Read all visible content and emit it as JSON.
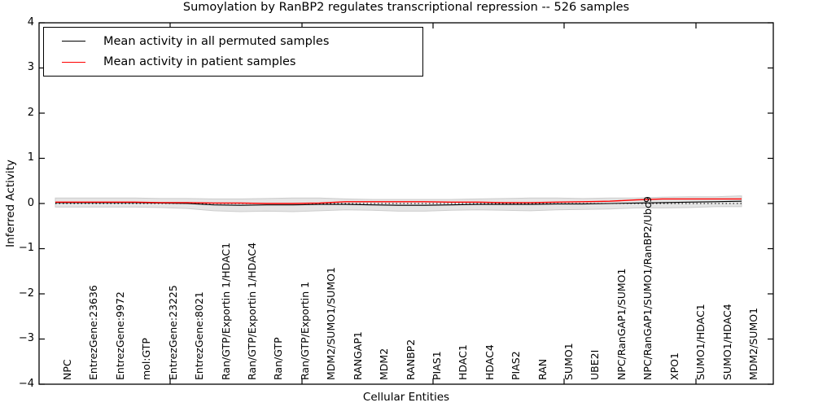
{
  "title": "Sumoylation by RanBP2 regulates transcriptional repression -- 526 samples",
  "legend": {
    "items": [
      {
        "label": "Mean activity in all permuted samples",
        "color": "#000000"
      },
      {
        "label": "Mean activity in patient samples",
        "color": "#ff0000"
      }
    ],
    "position": "upper left"
  },
  "chart_data": {
    "type": "line",
    "title": "Sumoylation by RanBP2 regulates transcriptional repression -- 526 samples",
    "xlabel": "Cellular Entities",
    "ylabel": "Inferred Activity",
    "ylim": [
      -4,
      4
    ],
    "ytick_labels": [
      "4",
      "3",
      "2",
      "1",
      "0",
      "−1",
      "−2",
      "−3",
      "−4"
    ],
    "ytick_values": [
      4,
      3,
      2,
      1,
      0,
      -1,
      -2,
      -3,
      -4
    ],
    "grid": false,
    "frame_color": "#000000",
    "background_color": "#ffffff",
    "categories": [
      "NPC",
      "EntrezGene:23636",
      "EntrezGene:9972",
      "mol:GTP",
      "EntrezGene:23225",
      "EntrezGene:8021",
      "Ran/GTP/Exportin 1/HDAC1",
      "Ran/GTP/Exportin 1/HDAC4",
      "Ran/GTP",
      "Ran/GTP/Exportin 1",
      "MDM2/SUMO1/SUMO1",
      "RANGAP1",
      "MDM2",
      "RANBP2",
      "PIAS1",
      "HDAC1",
      "HDAC4",
      "PIAS2",
      "RAN",
      "SUMO1",
      "UBE2I",
      "NPC/RanGAP1/SUMO1",
      "NPC/RanGAP1/SUMO1/RanBP2/Ubc9",
      "XPO1",
      "SUMO1/HDAC1",
      "SUMO1/HDAC4",
      "MDM2/SUMO1"
    ],
    "series": [
      {
        "name": "Mean activity in all permuted samples",
        "color": "#000000",
        "style": "solid",
        "values": [
          0.02,
          0.02,
          0.02,
          0.02,
          0.01,
          0.0,
          -0.03,
          -0.04,
          -0.03,
          -0.03,
          -0.02,
          -0.02,
          -0.03,
          -0.04,
          -0.04,
          -0.03,
          -0.02,
          -0.02,
          -0.02,
          -0.01,
          -0.01,
          0.0,
          0.01,
          0.02,
          0.03,
          0.04,
          0.05
        ]
      },
      {
        "name": "Mean activity in patient samples",
        "color": "#ff0000",
        "style": "solid",
        "values": [
          0.03,
          0.03,
          0.03,
          0.03,
          0.02,
          0.02,
          0.01,
          0.01,
          0.0,
          0.0,
          0.01,
          0.04,
          0.04,
          0.04,
          0.04,
          0.03,
          0.03,
          0.02,
          0.02,
          0.03,
          0.04,
          0.05,
          0.08,
          0.1,
          0.1,
          0.1,
          0.1
        ]
      }
    ],
    "band": {
      "description": "gray spread band around permuted mean",
      "color": "#e4e4e4",
      "edge_color": "#cccccc",
      "center_series": "Mean activity in all permuted samples",
      "half_widths": [
        0.1,
        0.1,
        0.1,
        0.1,
        0.1,
        0.11,
        0.13,
        0.14,
        0.14,
        0.15,
        0.14,
        0.12,
        0.12,
        0.13,
        0.13,
        0.12,
        0.12,
        0.13,
        0.14,
        0.13,
        0.12,
        0.12,
        0.11,
        0.12,
        0.12,
        0.11,
        0.12
      ]
    },
    "zero_line": {
      "value": 0,
      "style": "dotted",
      "color": "#000000"
    },
    "legend_position": "upper left"
  }
}
